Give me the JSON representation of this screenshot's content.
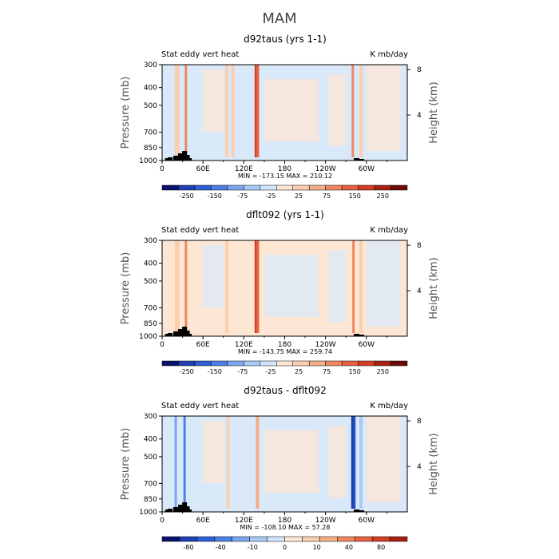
{
  "figure_title": "MAM",
  "chart_data": [
    {
      "type": "heatmap",
      "title": "d92taus (yrs 1-1)",
      "left_label": "Stat eddy vert heat",
      "units": "K mb/day",
      "ylabel": "Pressure (mb)",
      "ylabel_right": "Height (km)",
      "yticks": [
        300,
        400,
        500,
        700,
        850,
        1000
      ],
      "yticks_right": [
        8,
        4
      ],
      "xticks": [
        "0",
        "60E",
        "120E",
        "180",
        "120W",
        "60W"
      ],
      "stats": "MIN = -173.15   MAX = 210.12",
      "colorbar_labels": [
        "-250",
        "-150",
        "-75",
        "-25",
        "25",
        "75",
        "150",
        "250"
      ],
      "colorbar_colors": [
        "#08136c",
        "#1f3fb2",
        "#2f5ed6",
        "#4b7fe6",
        "#7aa6f0",
        "#a9c9f7",
        "#d1e4fb",
        "#fde6d3",
        "#fbcfae",
        "#f5ad85",
        "#ee8761",
        "#e5613f",
        "#d23e22",
        "#a72112",
        "#6e0a08"
      ],
      "background": "#d9e9f9",
      "features": [
        {
          "lon": 22,
          "color": "#fbcfae",
          "width": 6
        },
        {
          "lon": 35,
          "color": "#ee8761",
          "width": 3
        },
        {
          "lon": 95,
          "color": "#fbcfae",
          "width": 4
        },
        {
          "lon": 104,
          "color": "#fbcfae",
          "width": 4
        },
        {
          "lon": 140,
          "color": "#e5613f",
          "width": 4
        },
        {
          "lon": 137,
          "color": "#d23e22",
          "width": 2
        },
        {
          "lon": 280,
          "color": "#ee8761",
          "width": 3
        },
        {
          "lon": 292,
          "color": "#fbcfae",
          "width": 4
        }
      ]
    },
    {
      "type": "heatmap",
      "title": "dflt092 (yrs 1-1)",
      "left_label": "Stat eddy vert heat",
      "units": "K mb/day",
      "ylabel": "Pressure (mb)",
      "ylabel_right": "Height (km)",
      "yticks": [
        300,
        400,
        500,
        700,
        850,
        1000
      ],
      "yticks_right": [
        8,
        4
      ],
      "xticks": [
        "0",
        "60E",
        "120E",
        "180",
        "120W",
        "60W"
      ],
      "stats": "MIN = -143.75   MAX = 259.74",
      "colorbar_labels": [
        "-250",
        "-150",
        "-75",
        "-25",
        "25",
        "75",
        "150",
        "250"
      ],
      "colorbar_colors": [
        "#08136c",
        "#1f3fb2",
        "#2f5ed6",
        "#4b7fe6",
        "#7aa6f0",
        "#a9c9f7",
        "#d1e4fb",
        "#fde6d3",
        "#fbcfae",
        "#f5ad85",
        "#ee8761",
        "#e5613f",
        "#d23e22",
        "#a72112",
        "#6e0a08"
      ],
      "background": "#fde6d3",
      "features": [
        {
          "lon": 22,
          "color": "#fbcfae",
          "width": 6
        },
        {
          "lon": 35,
          "color": "#ee8761",
          "width": 3
        },
        {
          "lon": 95,
          "color": "#fbcfae",
          "width": 4
        },
        {
          "lon": 140,
          "color": "#e5613f",
          "width": 4
        },
        {
          "lon": 137,
          "color": "#d23e22",
          "width": 2
        },
        {
          "lon": 281,
          "color": "#ee8761",
          "width": 3
        },
        {
          "lon": 292,
          "color": "#fbcfae",
          "width": 4
        }
      ]
    },
    {
      "type": "heatmap",
      "title": "d92taus - dflt092",
      "left_label": "Stat eddy vert heat",
      "units": "K mb/day",
      "ylabel": "Pressure (mb)",
      "ylabel_right": "Height (km)",
      "yticks": [
        300,
        400,
        500,
        700,
        850,
        1000
      ],
      "yticks_right": [
        8,
        4
      ],
      "xticks": [
        "0",
        "60E",
        "120E",
        "180",
        "120W",
        "60W"
      ],
      "stats": "MIN = -108.10   MAX =  57.28",
      "colorbar_labels": [
        "-80",
        "-40",
        "-10",
        "0",
        "10",
        "40",
        "80"
      ],
      "colorbar_colors": [
        "#08136c",
        "#1f3fb2",
        "#2f5ed6",
        "#4b7fe6",
        "#7aa6f0",
        "#a9c9f7",
        "#d1e4fb",
        "#fde6d3",
        "#fbcfae",
        "#f5ad85",
        "#ee8761",
        "#e5613f",
        "#d23e22",
        "#a72112"
      ],
      "background": "#d9e9f9",
      "features": [
        {
          "lon": 20,
          "color": "#7aa6f0",
          "width": 3
        },
        {
          "lon": 33,
          "color": "#4b7fe6",
          "width": 3
        },
        {
          "lon": 97,
          "color": "#fbcfae",
          "width": 4
        },
        {
          "lon": 140,
          "color": "#f5ad85",
          "width": 4
        },
        {
          "lon": 280,
          "color": "#1f3fb2",
          "width": 4
        },
        {
          "lon": 283,
          "color": "#2f5ed6",
          "width": 2
        },
        {
          "lon": 292,
          "color": "#a9c9f7",
          "width": 4
        }
      ]
    }
  ]
}
